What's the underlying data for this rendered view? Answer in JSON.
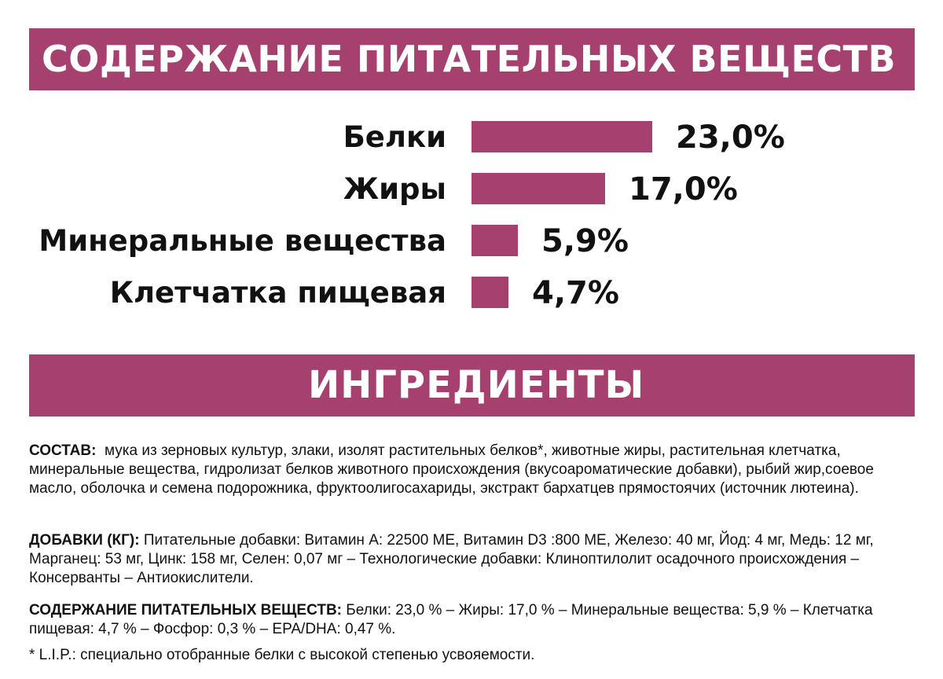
{
  "header": {
    "title": "СОДЕРЖАНИЕ ПИТАТЕЛЬНЫХ ВЕЩЕСТВ"
  },
  "chart_data": {
    "type": "bar",
    "orientation": "horizontal",
    "categories": [
      "Белки",
      "Жиры",
      "Минеральные вещества",
      "Клетчатка пищевая"
    ],
    "values": [
      23.0,
      17.0,
      5.9,
      4.7
    ],
    "value_labels": [
      "23,0%",
      "17,0%",
      "5,9%",
      "4,7%"
    ],
    "title": "",
    "xlabel": "",
    "ylabel": "",
    "unit": "%",
    "grid": false,
    "legend": "none",
    "bar_color": "#a6416f"
  },
  "ingredients": {
    "title": "ИНГРЕДИЕНТЫ",
    "composition_label": "СОСТАВ:",
    "composition_text": "мука из зерновых культур, злаки, изолят растительных белков*, животные жиры, растительная клетчатка, минеральные вещества, гидролизат белков животного происхождения (вкусоароматические добавки), рыбий жир,соевое масло, оболочка и семена подорожника, фруктоолигосахариды, экстракт бархатцев прямостоячих (источник лютеина).",
    "additives_label": "ДОБАВКИ (КГ):",
    "additives_text": "Питательные добавки: Витамин А: 22500 МЕ, Витамин D3 :800 МЕ, Железо: 40 мг, Йод: 4 мг, Медь: 12 мг, Марганец: 53 мг, Цинк: 158 мг, Селен: 0,07 мг – Технологические добавки: Клиноптилолит осадочного происхождения – Консерванты – Антиокислители.",
    "nutrients_label": "СОДЕРЖАНИЕ ПИТАТЕЛЬНЫХ ВЕЩЕСТВ:",
    "nutrients_text": "Белки: 23,0 % – Жиры: 17,0 % – Минеральные вещества: 5,9 % – Клетчатка пищевая: 4,7 % – Фосфор: 0,3 % – EPA/DHA: 0,47 %.",
    "footnote": "* L.I.P.: специально отобранные белки с высокой степенью усвояемости."
  },
  "colors": {
    "accent": "#a6416f",
    "text": "#111111",
    "background": "#ffffff"
  }
}
